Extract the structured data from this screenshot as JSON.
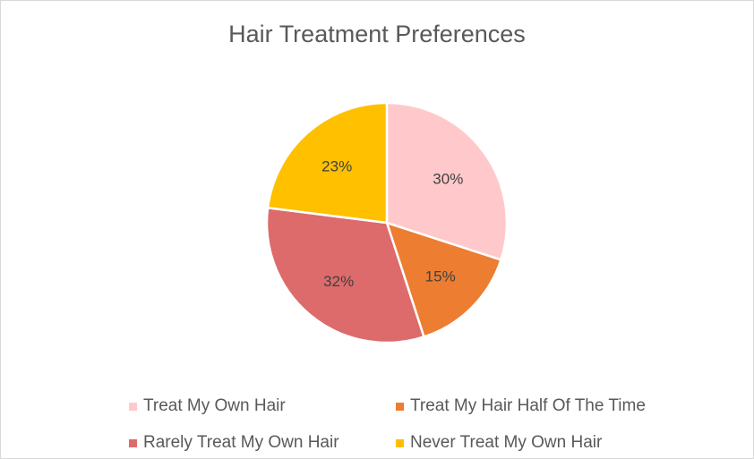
{
  "chart_data": {
    "type": "pie",
    "title": "Hair Treatment Preferences",
    "categories": [
      "Treat My Own Hair",
      "Treat My Hair Half Of The Time",
      "Rarely Treat My Own Hair",
      "Never Treat My Own Hair"
    ],
    "values": [
      30,
      15,
      32,
      23
    ],
    "data_labels": [
      "30%",
      "15%",
      "32%",
      "23%"
    ],
    "colors": [
      "#ffc9cb",
      "#ed7d31",
      "#dd6b6b",
      "#ffc000"
    ],
    "legend_position": "bottom"
  }
}
